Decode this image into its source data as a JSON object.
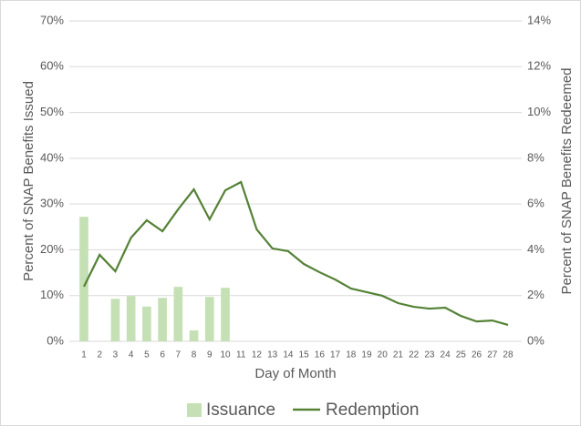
{
  "chart_data": {
    "type": "bar-line",
    "categories": [
      "1",
      "2",
      "3",
      "4",
      "5",
      "6",
      "7",
      "8",
      "9",
      "10",
      "11",
      "12",
      "13",
      "14",
      "15",
      "16",
      "17",
      "18",
      "19",
      "20",
      "21",
      "22",
      "23",
      "24",
      "25",
      "26",
      "27",
      "28"
    ],
    "x_label": "Day of Month",
    "y_label": "Percent of SNAP Benefits Issued",
    "y2_label": "Percent of SNAP Benefits Redeemed",
    "series": [
      {
        "name": "Issuance",
        "type": "bar",
        "color": "#c5e0b4",
        "values": [
          27.2,
          null,
          9.3,
          9.9,
          7.6,
          9.5,
          11.9,
          2.4,
          9.7,
          11.7,
          null,
          null,
          null,
          null,
          null,
          null,
          null,
          null,
          null,
          null,
          null,
          null,
          null,
          null,
          null,
          null,
          null,
          null
        ]
      },
      {
        "name": "Redemption",
        "type": "line",
        "axis": "y2",
        "color": "#548235",
        "values": [
          2.39,
          3.78,
          3.06,
          4.53,
          5.29,
          4.81,
          5.77,
          6.64,
          5.33,
          6.6,
          6.96,
          4.89,
          4.06,
          3.94,
          3.38,
          3.02,
          2.7,
          2.31,
          2.15,
          1.99,
          1.67,
          1.51,
          1.43,
          1.47,
          1.11,
          0.87,
          0.91,
          0.72
        ]
      }
    ],
    "ylim": [
      0,
      70
    ],
    "yticks": [
      {
        "value": 0,
        "label": "0%"
      },
      {
        "value": 10,
        "label": "10%"
      },
      {
        "value": 20,
        "label": "20%"
      },
      {
        "value": 30,
        "label": "30%"
      },
      {
        "value": 40,
        "label": "40%"
      },
      {
        "value": 50,
        "label": "50%"
      },
      {
        "value": 60,
        "label": "60%"
      },
      {
        "value": 70,
        "label": "70%"
      }
    ],
    "y2lim": [
      0,
      14
    ],
    "y2ticks": [
      {
        "value": 0,
        "label": "0%"
      },
      {
        "value": 2,
        "label": "2%"
      },
      {
        "value": 4,
        "label": "4%"
      },
      {
        "value": 6,
        "label": "6%"
      },
      {
        "value": 8,
        "label": "8%"
      },
      {
        "value": 10,
        "label": "10%"
      },
      {
        "value": 12,
        "label": "12%"
      },
      {
        "value": 14,
        "label": "14%"
      }
    ],
    "grid": true,
    "legend": "bottom"
  }
}
